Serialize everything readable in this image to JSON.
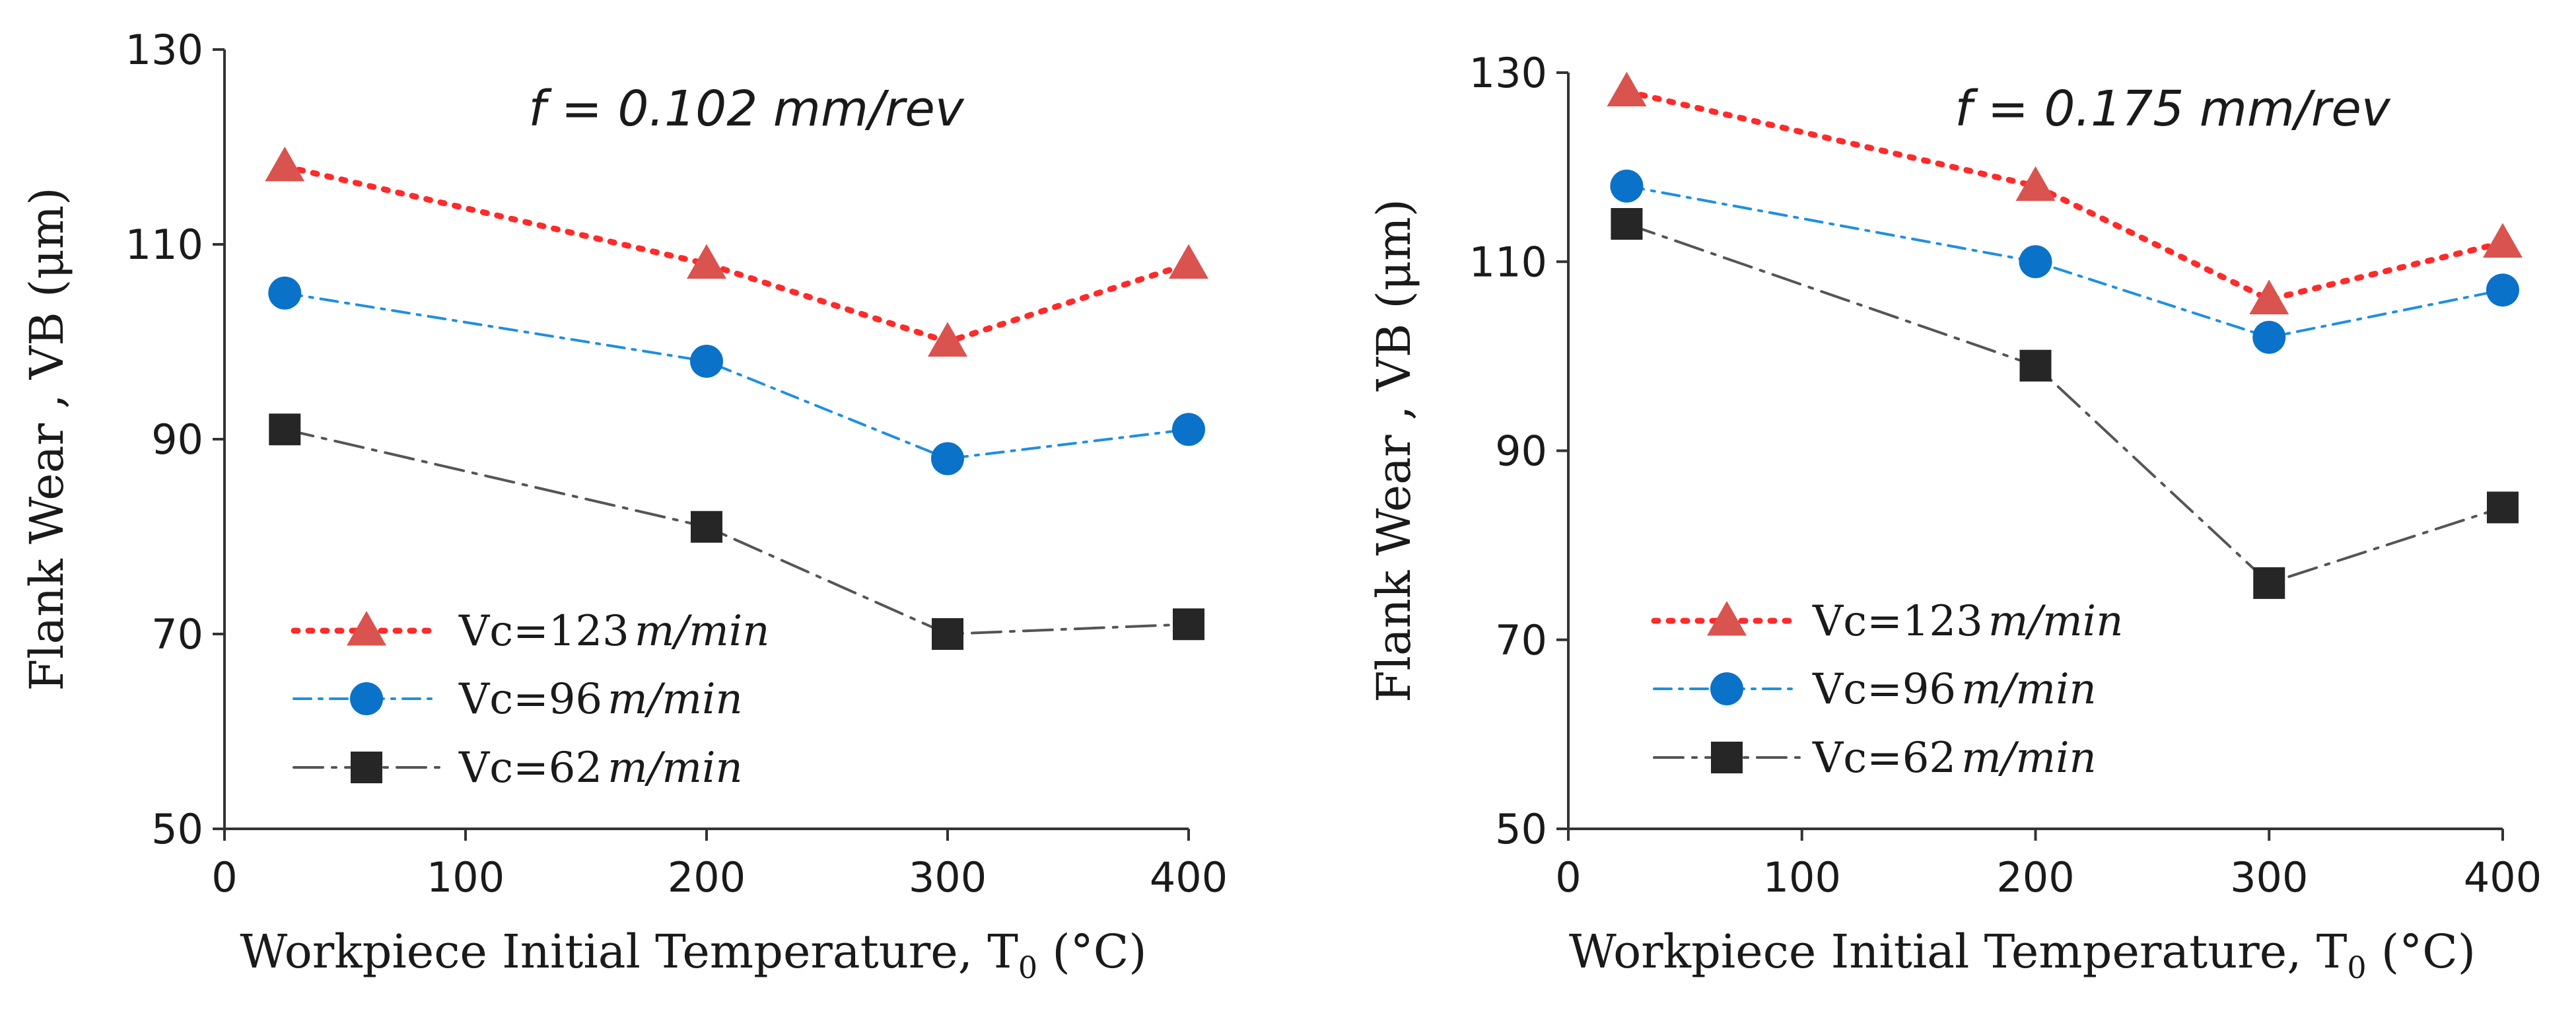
{
  "chart_data": [
    {
      "type": "line",
      "annotation": "f = 0.102 mm/rev",
      "xlabel": "Workpiece Initial Temperature, T0 (°C)",
      "xlabel_main": "Workpiece Initial Temperature, T",
      "xlabel_sub": "0",
      "xlabel_tail": " (°C)",
      "ylabel": "Flank Wear , VB (μm)",
      "xlim": [
        0,
        400
      ],
      "ylim": [
        50,
        130
      ],
      "xticks": [
        "0",
        "100",
        "200",
        "300",
        "400"
      ],
      "yticks": [
        "50",
        "70",
        "90",
        "110",
        "130"
      ],
      "x": [
        25,
        200,
        300,
        400
      ],
      "legend_position": "bottom-left",
      "series": [
        {
          "name": "Vc=123",
          "unit": "m/min",
          "marker": "triangle",
          "color": "#d9534f",
          "line_color": "#ff2a2a",
          "dash": "dotted",
          "values": [
            118,
            108,
            100,
            108
          ]
        },
        {
          "name": "Vc=96",
          "unit": "m/min",
          "marker": "circle",
          "color": "#0a72c8",
          "line_color": "#1f8fe0",
          "dash": "dashdot",
          "values": [
            105,
            98,
            88,
            91
          ]
        },
        {
          "name": "Vc=62",
          "unit": "m/min",
          "marker": "square",
          "color": "#262626",
          "line_color": "#555555",
          "dash": "longdashdot",
          "values": [
            91,
            81,
            70,
            71
          ]
        }
      ]
    },
    {
      "type": "line",
      "annotation": "f = 0.175 mm/rev",
      "xlabel": "Workpiece Initial Temperature, T0 (°C)",
      "xlabel_main": "Workpiece Initial Temperature, T",
      "xlabel_sub": "0",
      "xlabel_tail": " (°C)",
      "ylabel": "Flank Wear , VB (μm)",
      "xlim": [
        0,
        400
      ],
      "ylim": [
        50,
        130
      ],
      "xticks": [
        "0",
        "100",
        "200",
        "300",
        "400"
      ],
      "yticks": [
        "50",
        "70",
        "90",
        "110",
        "130"
      ],
      "x": [
        25,
        200,
        300,
        400
      ],
      "legend_position": "bottom-left",
      "series": [
        {
          "name": "Vc=123",
          "unit": "m/min",
          "marker": "triangle",
          "color": "#d9534f",
          "line_color": "#ff2a2a",
          "dash": "dotted",
          "values": [
            128,
            118,
            106,
            112
          ]
        },
        {
          "name": "Vc=96",
          "unit": "m/min",
          "marker": "circle",
          "color": "#0a72c8",
          "line_color": "#1f8fe0",
          "dash": "dashdot",
          "values": [
            118,
            110,
            102,
            107
          ]
        },
        {
          "name": "Vc=62",
          "unit": "m/min",
          "marker": "square",
          "color": "#262626",
          "line_color": "#555555",
          "dash": "longdashdot",
          "values": [
            114,
            99,
            76,
            84
          ]
        }
      ]
    }
  ]
}
